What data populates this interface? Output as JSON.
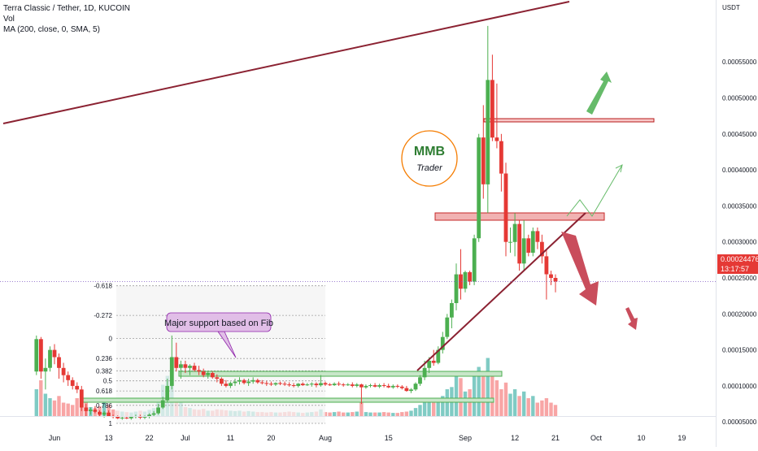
{
  "header": {
    "title": "Terra Classic / Tether, 1D, KUCOIN",
    "vol": "Vol",
    "ma": "MA (200, close, 0, SMA, 5)"
  },
  "currency": "USDT",
  "price_tag": {
    "price": "0.00024476",
    "countdown": "13:17:57",
    "color": "#e53935"
  },
  "annotation": "Major support based on Fib",
  "logo": {
    "letters": "MMB",
    "caption": "Trader"
  },
  "colors": {
    "up": "#4caf50",
    "down": "#e53935",
    "up_vol": "#80cbc4",
    "down_vol": "#f8a5a5",
    "trend": "#8b2232",
    "box_red": "#e57373",
    "box_green": "#4caf50",
    "up_arrow": "#66bb6a",
    "down_arrow": "#c94d5c"
  },
  "chart_data": {
    "type": "candlestick",
    "title": "Terra Classic / Tether, 1D, KUCOIN",
    "ylabel": "USDT",
    "y_scale": "linear",
    "ylim": [
      8e-07,
      6.05e-05
    ],
    "y_ticks": [
      {
        "value": 5e-05,
        "label": "0.00005000"
      },
      {
        "value": 0.0001,
        "label": "0.00010000"
      },
      {
        "value": 0.00015,
        "label": "0.00015000"
      },
      {
        "value": 0.0002,
        "label": "0.00020000"
      },
      {
        "value": 0.00025,
        "label": "0.00025000"
      },
      {
        "value": 0.0003,
        "label": "0.00030000"
      },
      {
        "value": 0.00035,
        "label": "0.00035000"
      },
      {
        "value": 0.0004,
        "label": "0.00040000"
      },
      {
        "value": 0.00045,
        "label": "0.00045000"
      },
      {
        "value": 0.0005,
        "label": "0.00050000"
      },
      {
        "value": 0.00055,
        "label": "0.00055000"
      }
    ],
    "x_ticks": [
      {
        "day": 0,
        "label": "Jun"
      },
      {
        "day": 12,
        "label": "13"
      },
      {
        "day": 21,
        "label": "22"
      },
      {
        "day": 29,
        "label": "Jul"
      },
      {
        "day": 39,
        "label": "11"
      },
      {
        "day": 48,
        "label": "20"
      },
      {
        "day": 60,
        "label": "Aug"
      },
      {
        "day": 74,
        "label": "15"
      },
      {
        "day": 91,
        "label": "Sep"
      },
      {
        "day": 102,
        "label": "12"
      },
      {
        "day": 111,
        "label": "21"
      },
      {
        "day": 120,
        "label": "Oct"
      },
      {
        "day": 130,
        "label": "10"
      },
      {
        "day": 139,
        "label": "19"
      }
    ],
    "candles_ohlcv": [
      [
        -4,
        0.00012,
        0.00017,
        0.000115,
        0.000165,
        60
      ],
      [
        -3,
        0.000165,
        0.000168,
        0.00011,
        0.00012,
        80
      ],
      [
        -2,
        0.00012,
        0.000138,
        9.5e-05,
        0.000125,
        50
      ],
      [
        -1,
        0.000125,
        0.000155,
        0.00012,
        0.00015,
        40
      ],
      [
        0,
        0.00015,
        0.000158,
        0.00013,
        0.00014,
        35
      ],
      [
        1,
        0.00014,
        0.000145,
        0.00011,
        0.000125,
        45
      ],
      [
        2,
        0.000125,
        0.000132,
        0.000105,
        0.000115,
        30
      ],
      [
        3,
        0.000115,
        0.00012,
        0.0001,
        0.000108,
        28
      ],
      [
        4,
        0.000108,
        0.000112,
        9.5e-05,
        0.0001,
        25
      ],
      [
        5,
        0.0001,
        0.000105,
        9e-05,
        9.5e-05,
        40
      ],
      [
        6,
        9.5e-05,
        0.0001,
        6.5e-05,
        7e-05,
        55
      ],
      [
        7,
        7e-05,
        7.5e-05,
        5.8e-05,
        6.5e-05,
        35
      ],
      [
        8,
        6.5e-05,
        7e-05,
        6e-05,
        6.7e-05,
        20
      ],
      [
        9,
        6.7e-05,
        7.2e-05,
        6.2e-05,
        6.4e-05,
        18
      ],
      [
        10,
        6.4e-05,
        6.6e-05,
        5.8e-05,
        6e-05,
        22
      ],
      [
        11,
        6e-05,
        6.5e-05,
        5.6e-05,
        6.3e-05,
        30
      ],
      [
        12,
        6.3e-05,
        6.6e-05,
        5.7e-05,
        5.8e-05,
        25
      ],
      [
        13,
        5.8e-05,
        6e-05,
        5.5e-05,
        5.7e-05,
        15
      ],
      [
        14,
        5.7e-05,
        5.9e-05,
        5.4e-05,
        5.5e-05,
        12
      ],
      [
        15,
        5.5e-05,
        5.8e-05,
        5.3e-05,
        5.6e-05,
        10
      ],
      [
        16,
        5.6e-05,
        5.8e-05,
        5.4e-05,
        5.5e-05,
        9
      ],
      [
        17,
        5.5e-05,
        5.8e-05,
        5.3e-05,
        5.7e-05,
        8
      ],
      [
        18,
        5.7e-05,
        6e-05,
        5.5e-05,
        5.8e-05,
        10
      ],
      [
        19,
        5.8e-05,
        6e-05,
        5.4e-05,
        5.6e-05,
        12
      ],
      [
        20,
        5.6e-05,
        5.9e-05,
        5.4e-05,
        5.8e-05,
        10
      ],
      [
        21,
        5.8e-05,
        6.2e-05,
        5.5e-05,
        6e-05,
        14
      ],
      [
        22,
        6e-05,
        6.5e-05,
        5.7e-05,
        6.2e-05,
        18
      ],
      [
        23,
        6.2e-05,
        7.5e-05,
        6e-05,
        7e-05,
        35
      ],
      [
        24,
        7e-05,
        8.5e-05,
        6.8e-05,
        8e-05,
        70
      ],
      [
        25,
        8e-05,
        0.00011,
        7.8e-05,
        0.0001,
        90
      ],
      [
        26,
        0.0001,
        0.00017,
        9.5e-05,
        0.00014,
        75
      ],
      [
        27,
        0.00014,
        0.00016,
        0.00012,
        0.000125,
        40
      ],
      [
        28,
        0.000125,
        0.000135,
        0.00011,
        0.00013,
        30
      ],
      [
        29,
        0.00013,
        0.000135,
        0.000118,
        0.000125,
        20
      ],
      [
        30,
        0.000125,
        0.00013,
        0.000115,
        0.000128,
        18
      ],
      [
        31,
        0.000128,
        0.000132,
        0.00012,
        0.000122,
        15
      ],
      [
        32,
        0.000122,
        0.000128,
        0.000115,
        0.00012,
        14
      ],
      [
        33,
        0.00012,
        0.000124,
        0.000112,
        0.000115,
        16
      ],
      [
        34,
        0.000115,
        0.00012,
        0.00011,
        0.000118,
        12
      ],
      [
        35,
        0.000118,
        0.00012,
        0.00011,
        0.000112,
        12
      ],
      [
        36,
        0.000112,
        0.000116,
        0.000105,
        0.00011,
        15
      ],
      [
        37,
        0.00011,
        0.000112,
        0.0001,
        0.000103,
        14
      ],
      [
        38,
        0.000103,
        0.000108,
        9.8e-05,
        0.0001,
        13
      ],
      [
        39,
        0.0001,
        0.000106,
        9.7e-05,
        0.000104,
        12
      ],
      [
        40,
        0.000104,
        0.00011,
        0.0001,
        0.000106,
        11
      ],
      [
        41,
        0.000106,
        0.000112,
        0.000102,
        0.000108,
        12
      ],
      [
        42,
        0.000108,
        0.00011,
        0.000102,
        0.000104,
        10
      ],
      [
        43,
        0.000104,
        0.00011,
        0.0001,
        0.000106,
        11
      ],
      [
        44,
        0.000106,
        0.000112,
        0.000103,
        0.000108,
        10
      ],
      [
        45,
        0.000108,
        0.00011,
        0.000103,
        0.000105,
        9
      ],
      [
        46,
        0.000105,
        0.000108,
        0.000102,
        0.000104,
        9
      ],
      [
        47,
        0.000104,
        0.000107,
        0.0001,
        0.000103,
        8
      ],
      [
        48,
        0.000103,
        0.000106,
        0.0001,
        0.000102,
        9
      ],
      [
        49,
        0.000102,
        0.000105,
        0.0001,
        0.000104,
        8
      ],
      [
        50,
        0.000104,
        0.000106,
        0.000101,
        0.000103,
        8
      ],
      [
        51,
        0.000103,
        0.000106,
        0.0001,
        0.000102,
        9
      ],
      [
        52,
        0.000102,
        0.000105,
        9.9e-05,
        0.000101,
        10
      ],
      [
        53,
        0.000101,
        0.000104,
        9.8e-05,
        0.0001,
        9
      ],
      [
        54,
        0.0001,
        0.000104,
        9.8e-05,
        0.000103,
        8
      ],
      [
        55,
        0.000103,
        0.000105,
        0.0001,
        0.000101,
        7
      ],
      [
        56,
        0.000101,
        0.000104,
        0.0001,
        0.000102,
        8
      ],
      [
        57,
        0.000102,
        0.000105,
        9.9e-05,
        0.000103,
        9
      ],
      [
        58,
        0.000103,
        0.000105,
        9.8e-05,
        0.000101,
        10
      ],
      [
        59,
        0.000101,
        0.000115,
        9.9e-05,
        0.000104,
        15
      ],
      [
        60,
        0.000104,
        0.000106,
        0.0001,
        0.000102,
        9
      ],
      [
        61,
        0.000102,
        0.000104,
        0.0001,
        0.000101,
        8
      ],
      [
        62,
        0.000101,
        0.000105,
        0.0001,
        0.000103,
        9
      ],
      [
        63,
        0.000103,
        0.000106,
        0.0001,
        0.000102,
        10
      ],
      [
        64,
        0.000102,
        0.000104,
        9.9e-05,
        0.000101,
        8
      ],
      [
        65,
        0.000101,
        0.000104,
        0.0001,
        0.000102,
        8
      ],
      [
        66,
        0.000102,
        0.000105,
        9.8e-05,
        0.0001,
        9
      ],
      [
        67,
        0.0001,
        0.000104,
        9.8e-05,
        0.000102,
        10
      ],
      [
        68,
        0.000102,
        0.000103,
        7.5e-05,
        9.8e-05,
        30
      ],
      [
        69,
        9.8e-05,
        0.000102,
        9.6e-05,
        0.0001,
        9
      ],
      [
        70,
        0.0001,
        0.000103,
        9.8e-05,
        0.000101,
        8
      ],
      [
        71,
        0.000101,
        0.000104,
        9.8e-05,
        9.9e-05,
        8
      ],
      [
        72,
        9.9e-05,
        0.000103,
        9.7e-05,
        0.000101,
        8
      ],
      [
        73,
        0.000101,
        0.000104,
        9.8e-05,
        0.0001,
        9
      ],
      [
        74,
        0.0001,
        0.000103,
        9.7e-05,
        9.8e-05,
        8
      ],
      [
        75,
        9.8e-05,
        0.000102,
        9.6e-05,
        0.0001,
        7
      ],
      [
        76,
        0.0001,
        0.000102,
        9.7e-05,
        9.9e-05,
        7
      ],
      [
        77,
        9.9e-05,
        0.000101,
        9.5e-05,
        9.7e-05,
        9
      ],
      [
        78,
        9.7e-05,
        0.0001,
        9.2e-05,
        9.3e-05,
        10
      ],
      [
        79,
        9.3e-05,
        9.7e-05,
        9e-05,
        9.5e-05,
        12
      ],
      [
        80,
        9.5e-05,
        0.000105,
        9.3e-05,
        0.000103,
        18
      ],
      [
        81,
        0.000103,
        0.000115,
        0.0001,
        0.000112,
        25
      ],
      [
        82,
        0.000112,
        0.000135,
        0.000108,
        0.000125,
        30
      ],
      [
        83,
        0.000125,
        0.00014,
        0.000118,
        0.000135,
        35
      ],
      [
        84,
        0.000135,
        0.00015,
        0.000128,
        0.000132,
        30
      ],
      [
        85,
        0.000132,
        0.000155,
        0.00013,
        0.00015,
        40
      ],
      [
        86,
        0.00015,
        0.000175,
        0.000145,
        0.000168,
        45
      ],
      [
        87,
        0.000168,
        0.0002,
        0.000165,
        0.000195,
        60
      ],
      [
        88,
        0.000195,
        0.00022,
        0.00018,
        0.000215,
        65
      ],
      [
        89,
        0.000215,
        0.00027,
        0.000205,
        0.000255,
        90
      ],
      [
        90,
        0.000255,
        0.00029,
        0.00022,
        0.000235,
        85
      ],
      [
        91,
        0.000235,
        0.00026,
        0.00023,
        0.000258,
        55
      ],
      [
        92,
        0.000258,
        0.00026,
        0.00024,
        0.000245,
        60
      ],
      [
        93,
        0.000245,
        0.00031,
        0.00024,
        0.000305,
        95
      ],
      [
        94,
        0.000305,
        0.00045,
        0.0003,
        0.000445,
        110
      ],
      [
        95,
        0.000445,
        0.00049,
        0.00036,
        0.00038,
        100
      ],
      [
        96,
        0.00038,
        0.0006,
        0.00034,
        0.000525,
        130
      ],
      [
        97,
        0.000525,
        0.00056,
        0.00044,
        0.000445,
        90
      ],
      [
        98,
        0.000445,
        0.00052,
        0.00043,
        0.00044,
        80
      ],
      [
        99,
        0.00044,
        0.00045,
        0.00037,
        0.000395,
        60
      ],
      [
        100,
        0.000395,
        0.00041,
        0.00028,
        0.0003,
        75
      ],
      [
        101,
        0.0003,
        0.00032,
        0.000285,
        0.0003,
        50
      ],
      [
        102,
        0.0003,
        0.00034,
        0.00028,
        0.000325,
        60
      ],
      [
        103,
        0.000325,
        0.00033,
        0.00026,
        0.00027,
        45
      ],
      [
        104,
        0.00027,
        0.00033,
        0.00026,
        0.000305,
        55
      ],
      [
        105,
        0.000305,
        0.00031,
        0.00028,
        0.000285,
        40
      ],
      [
        106,
        0.000285,
        0.00032,
        0.00028,
        0.000315,
        45
      ],
      [
        107,
        0.000315,
        0.00032,
        0.00029,
        0.0003,
        30
      ],
      [
        108,
        0.0003,
        0.00031,
        0.00027,
        0.00028,
        35
      ],
      [
        109,
        0.00028,
        0.00029,
        0.00022,
        0.000255,
        40
      ],
      [
        110,
        0.000255,
        0.00026,
        0.00024,
        0.00025,
        30
      ],
      [
        111,
        0.00025,
        0.000255,
        0.00023,
        0.000245,
        25
      ]
    ],
    "volume_unit": "relative",
    "fib_levels": [
      {
        "label": "-0.618",
        "value": 0.000239
      },
      {
        "label": "-0.272",
        "value": 0.000198
      },
      {
        "label": "0",
        "value": 0.000166
      },
      {
        "label": "0.236",
        "value": 0.000138
      },
      {
        "label": "0.382",
        "value": 0.000121
      },
      {
        "label": "0.5",
        "value": 0.000107
      },
      {
        "label": "0.618",
        "value": 9.3e-05
      },
      {
        "label": "0.786",
        "value": 7.3e-05
      },
      {
        "label": "1",
        "value": 4.8e-05
      }
    ],
    "last_price": 0.00024476,
    "grid": false,
    "legend": "top-left"
  }
}
